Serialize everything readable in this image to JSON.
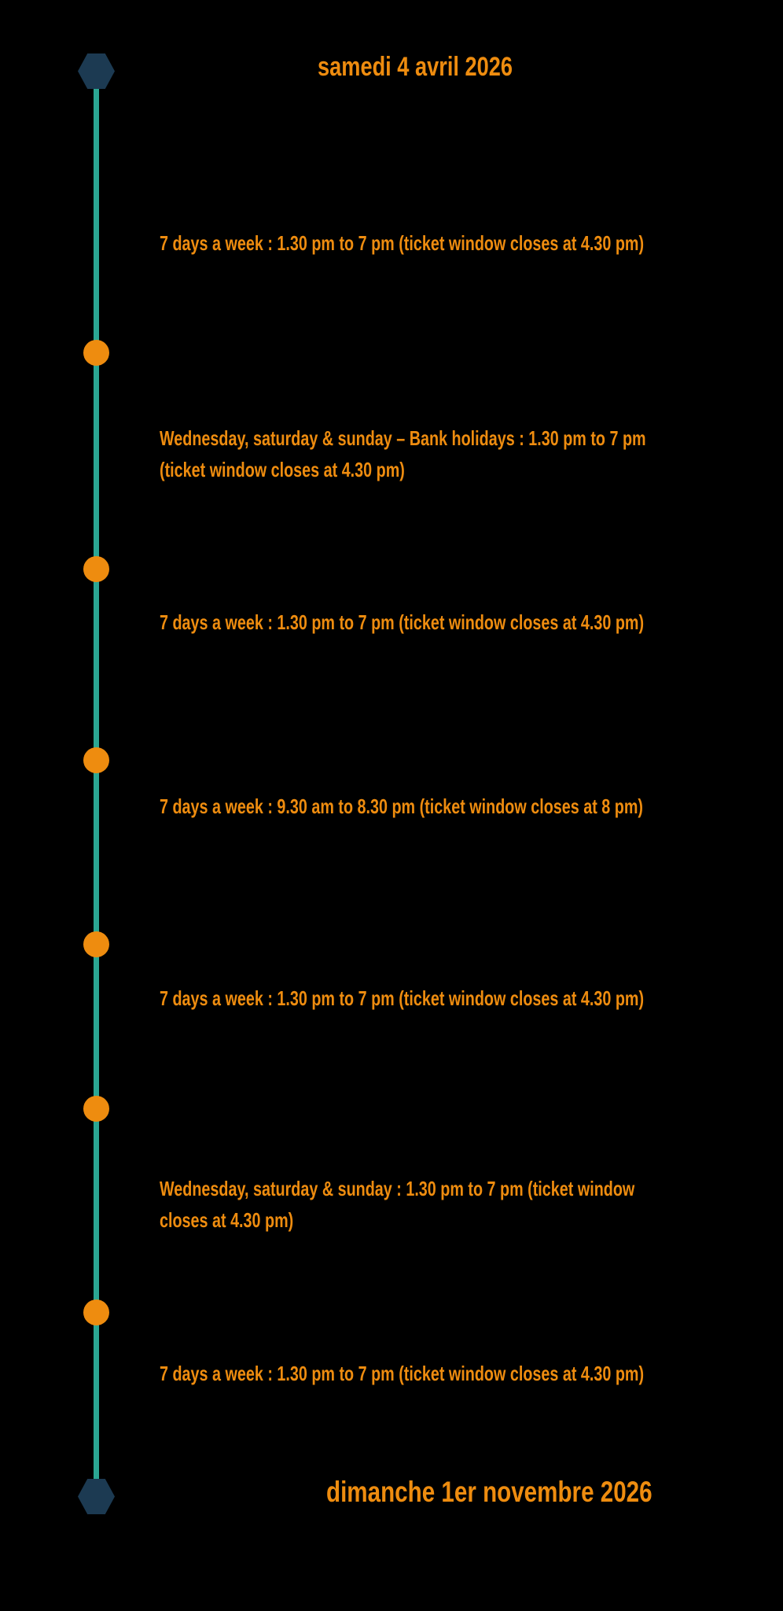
{
  "page": {
    "background_color": "#000000"
  },
  "timeline": {
    "line_color": "#2BA693",
    "marker_color": "#EE8C0F",
    "endpoint_color": "#1C3A52",
    "text_color": "#EE8C0F",
    "start": {
      "label": "samedi 4 avril 2026"
    },
    "end": {
      "label": "dimanche 1er novembre 2026"
    },
    "events": [
      {
        "lines": [
          "7 days a week : 1.30 pm to 7 pm (ticket window closes at 4.30 pm)"
        ]
      },
      {
        "lines": [
          "Wednesday, saturday & sunday – Bank holidays : 1.30 pm to 7 pm",
          "(ticket window closes at 4.30 pm)"
        ]
      },
      {
        "lines": [
          "7 days a week : 1.30 pm to 7 pm (ticket window closes at 4.30 pm)"
        ]
      },
      {
        "lines": [
          "7 days a week : 9.30 am to 8.30 pm (ticket window closes at 8 pm)"
        ]
      },
      {
        "lines": [
          "7 days a week : 1.30 pm to 7 pm (ticket window closes at 4.30 pm)"
        ]
      },
      {
        "lines": [
          "Wednesday, saturday & sunday : 1.30 pm to 7 pm (ticket window",
          "closes at 4.30 pm)"
        ]
      },
      {
        "lines": [
          "7 days a week : 1.30 pm to 7 pm (ticket window closes at 4.30 pm)"
        ]
      }
    ]
  }
}
